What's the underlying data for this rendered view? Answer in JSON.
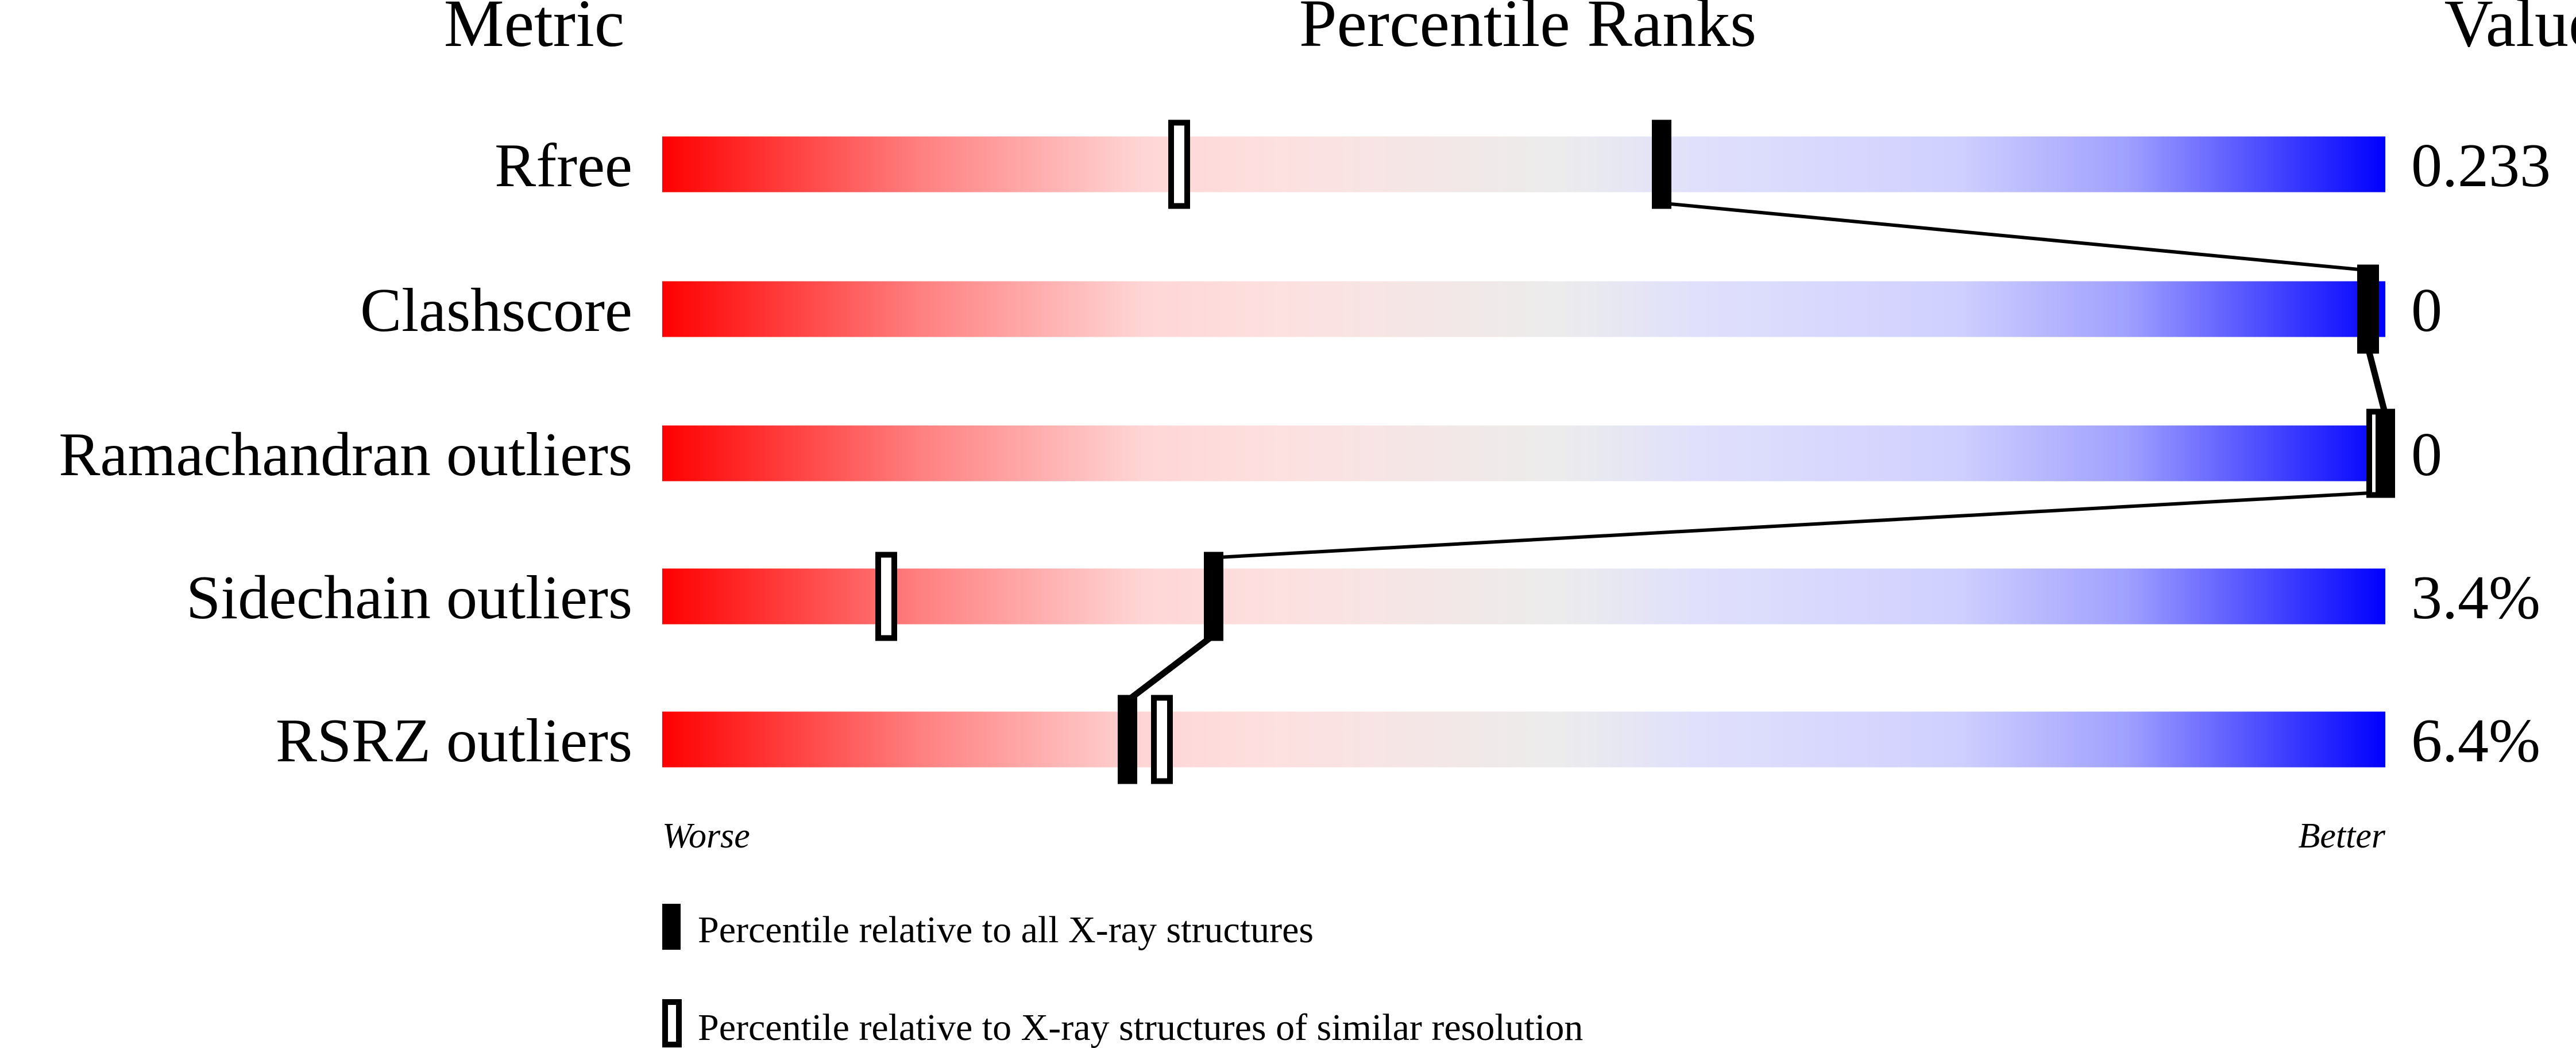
{
  "chart_data": {
    "type": "bar",
    "headers": {
      "metric": "Metric",
      "ranks": "Percentile Ranks",
      "value": "Value"
    },
    "metrics": [
      {
        "name": "Rfree",
        "value": "0.233",
        "percentile_all": 58,
        "percentile_similar": 30
      },
      {
        "name": "Clashscore",
        "value": "0",
        "percentile_all": 99,
        "percentile_similar": 99
      },
      {
        "name": "Ramachandran outliers",
        "value": "0",
        "percentile_all": 100,
        "percentile_similar": 100
      },
      {
        "name": "Sidechain outliers",
        "value": "3.4%",
        "percentile_all": 32,
        "percentile_similar": 13
      },
      {
        "name": "RSRZ outliers",
        "value": "6.4%",
        "percentile_all": 27,
        "percentile_similar": 29
      }
    ],
    "xlim": [
      0,
      100
    ],
    "axis_left_label": "Worse",
    "axis_right_label": "Better",
    "legend": [
      {
        "marker": "filled",
        "label": "Percentile relative to all X-ray structures"
      },
      {
        "marker": "outline",
        "label": "Percentile relative to X-ray structures of similar resolution"
      }
    ],
    "gradient_colors": [
      "#ff0000",
      "#ff8080",
      "#ffdddd",
      "#eeeeee",
      "#ddddff",
      "#a0a0ff",
      "#0000ff"
    ]
  }
}
